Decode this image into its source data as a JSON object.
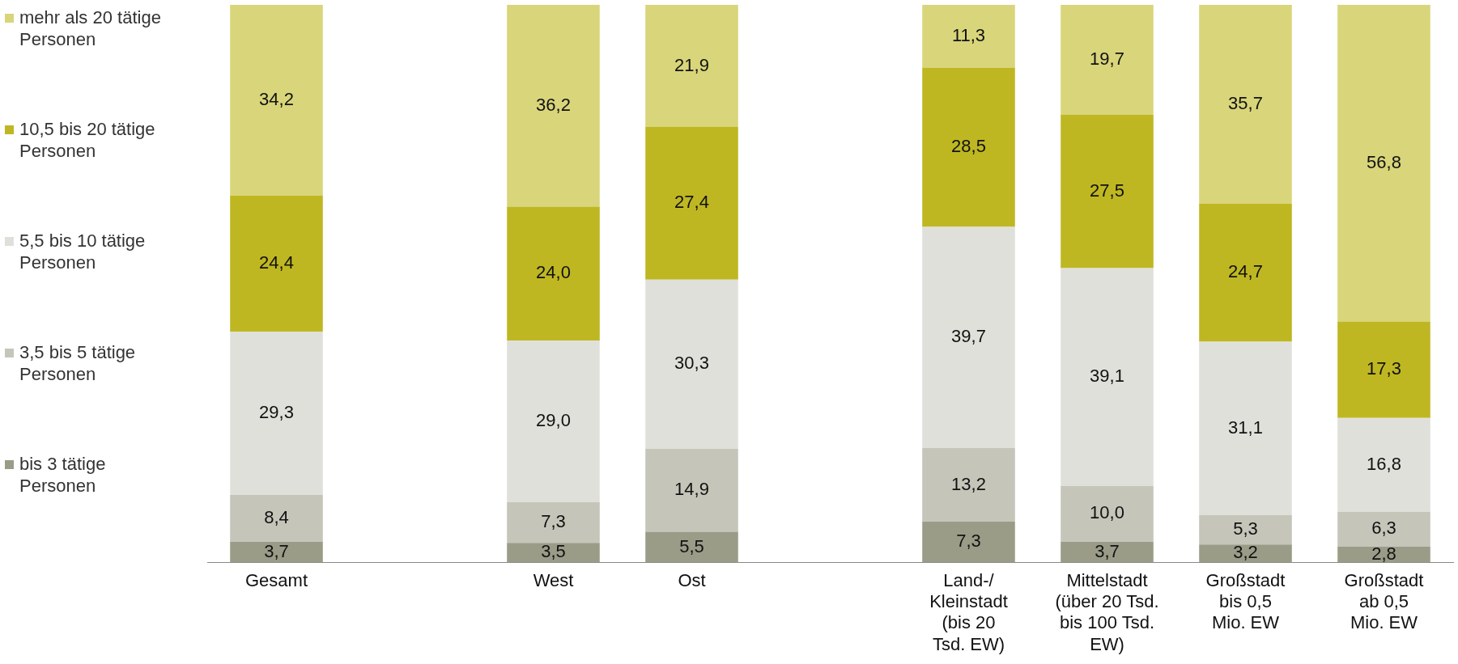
{
  "chart_data": {
    "type": "bar",
    "stacked": true,
    "legend": "left",
    "categories": [
      "Gesamt",
      null,
      "West",
      "Ost",
      null,
      "Land-/\nKleinstadt\n(bis 20\nTsd. EW)",
      "Mittelstadt\n(über 20 Tsd.\nbis 100 Tsd.\nEW)",
      "Großstadt\nbis 0,5\nMio. EW",
      "Großstadt\nab 0,5\nMio. EW"
    ],
    "series": [
      {
        "name": "bis 3 tätige Personen",
        "color": "#9a9c88",
        "values": [
          3.7,
          null,
          3.5,
          5.5,
          null,
          7.3,
          3.7,
          3.2,
          2.8
        ],
        "value_labels": [
          "3,7",
          null,
          "3,5",
          "5,5",
          null,
          "7,3",
          "3,7",
          "3,2",
          "2,8"
        ]
      },
      {
        "name": "3,5 bis 5 tätige Personen",
        "color": "#c5c5ba",
        "values": [
          8.4,
          null,
          7.3,
          14.9,
          null,
          13.2,
          10.0,
          5.3,
          6.3
        ],
        "value_labels": [
          "8,4",
          null,
          "7,3",
          "14,9",
          null,
          "13,2",
          "10,0",
          "5,3",
          "6,3"
        ]
      },
      {
        "name": "5,5 bis 10 tätige Personen",
        "color": "#e0e0db",
        "values": [
          29.3,
          null,
          29.0,
          30.3,
          null,
          39.7,
          39.1,
          31.1,
          16.8
        ],
        "value_labels": [
          "29,3",
          null,
          "29,0",
          "30,3",
          null,
          "39,7",
          "39,1",
          "31,1",
          "16,8"
        ]
      },
      {
        "name": "10,5 bis 20 tätige Personen",
        "color": "#bfb722",
        "values": [
          24.4,
          null,
          24.0,
          27.4,
          null,
          28.5,
          27.5,
          24.7,
          17.3
        ],
        "value_labels": [
          "24,4",
          null,
          "24,0",
          "27,4",
          null,
          "28,5",
          "27,5",
          "24,7",
          "17,3"
        ]
      },
      {
        "name": "mehr als 20 tätige Personen",
        "color": "#d9d57a",
        "values": [
          34.2,
          null,
          36.2,
          21.9,
          null,
          11.3,
          19.7,
          35.7,
          56.8
        ],
        "value_labels": [
          "34,2",
          null,
          "36,2",
          "21,9",
          null,
          "11,3",
          "19,7",
          "35,7",
          "56,8"
        ]
      }
    ]
  }
}
